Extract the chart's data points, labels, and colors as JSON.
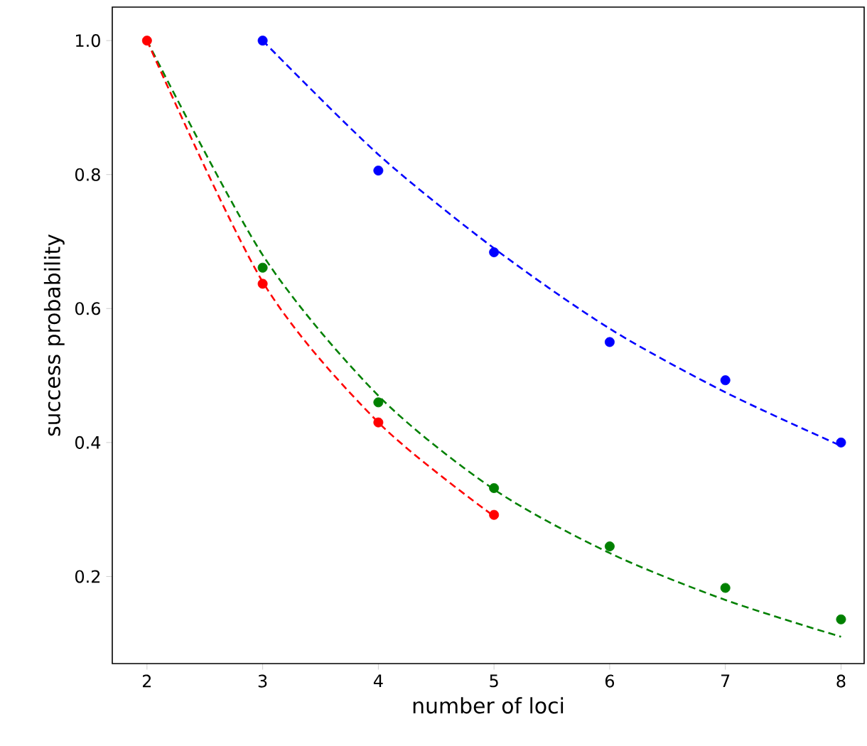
{
  "chart_data": {
    "type": "scatter",
    "xlabel": "number of loci",
    "ylabel": "success probability",
    "xlim": [
      1.7,
      8.2
    ],
    "ylim": [
      0.07,
      1.05
    ],
    "xticks": [
      2,
      3,
      4,
      5,
      6,
      7,
      8
    ],
    "yticks": [
      {
        "value": 0.2,
        "label": "0.2"
      },
      {
        "value": 0.4,
        "label": "0.4"
      },
      {
        "value": 0.6,
        "label": "0.6"
      },
      {
        "value": 0.8,
        "label": "0.8"
      },
      {
        "value": 1.0,
        "label": "1.0"
      }
    ],
    "grid": false,
    "legend": false,
    "marker": "circle",
    "series": [
      {
        "type": "line",
        "line_style": "dashed",
        "marker": "none",
        "color": "#0000ff",
        "x": [
          3,
          4,
          5,
          6,
          7,
          8
        ],
        "values": [
          1.0,
          0.83,
          0.69,
          0.57,
          0.475,
          0.395
        ]
      },
      {
        "type": "line",
        "line_style": "dashed",
        "marker": "none",
        "color": "#008000",
        "x": [
          2,
          3,
          4,
          5,
          6,
          7,
          8
        ],
        "values": [
          1.0,
          0.68,
          0.47,
          0.33,
          0.235,
          0.165,
          0.11
        ]
      },
      {
        "type": "line",
        "line_style": "dashed",
        "marker": "none",
        "color": "#ff0000",
        "x": [
          2,
          3,
          4,
          5
        ],
        "values": [
          1.0,
          0.64,
          0.43,
          0.29
        ]
      },
      {
        "color": "#0000ff",
        "x": [
          3,
          4,
          5,
          6,
          7,
          8
        ],
        "values": [
          1.0,
          0.806,
          0.684,
          0.55,
          0.493,
          0.4
        ]
      },
      {
        "color": "#008000",
        "x": [
          3,
          4,
          5,
          6,
          7,
          8
        ],
        "values": [
          0.661,
          0.46,
          0.332,
          0.245,
          0.183,
          0.136
        ]
      },
      {
        "color": "#ff0000",
        "x": [
          2,
          3,
          4,
          5
        ],
        "values": [
          1.0,
          0.637,
          0.43,
          0.292
        ]
      }
    ]
  }
}
